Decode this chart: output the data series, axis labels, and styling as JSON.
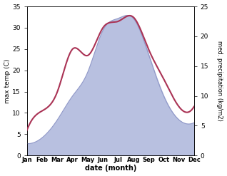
{
  "months": [
    "Jan",
    "Feb",
    "Mar",
    "Apr",
    "May",
    "Jun",
    "Jul",
    "Aug",
    "Sep",
    "Oct",
    "Nov",
    "Dec"
  ],
  "month_indices": [
    0,
    1,
    2,
    3,
    4,
    5,
    6,
    7,
    8,
    9,
    10,
    11
  ],
  "temperature": [
    6.0,
    10.5,
    15.0,
    25.0,
    23.5,
    30.0,
    31.5,
    32.5,
    25.0,
    18.0,
    11.5,
    11.5
  ],
  "precipitation": [
    2.0,
    3.0,
    6.0,
    10.0,
    14.0,
    21.0,
    23.0,
    23.0,
    17.0,
    10.0,
    6.0,
    5.5
  ],
  "temp_color": "#aa3355",
  "precip_fill_color": "#b8c0e0",
  "precip_edge_color": "#9098c8",
  "temp_ylim": [
    0,
    35
  ],
  "precip_ylim": [
    0,
    25
  ],
  "temp_yticks": [
    0,
    5,
    10,
    15,
    20,
    25,
    30,
    35
  ],
  "precip_yticks": [
    0,
    5,
    10,
    15,
    20,
    25
  ],
  "xlabel": "date (month)",
  "ylabel_left": "max temp (C)",
  "ylabel_right": "med. precipitation (kg/m2)",
  "bg_color": "#ffffff",
  "fig_width": 3.18,
  "fig_height": 2.47,
  "dpi": 100
}
